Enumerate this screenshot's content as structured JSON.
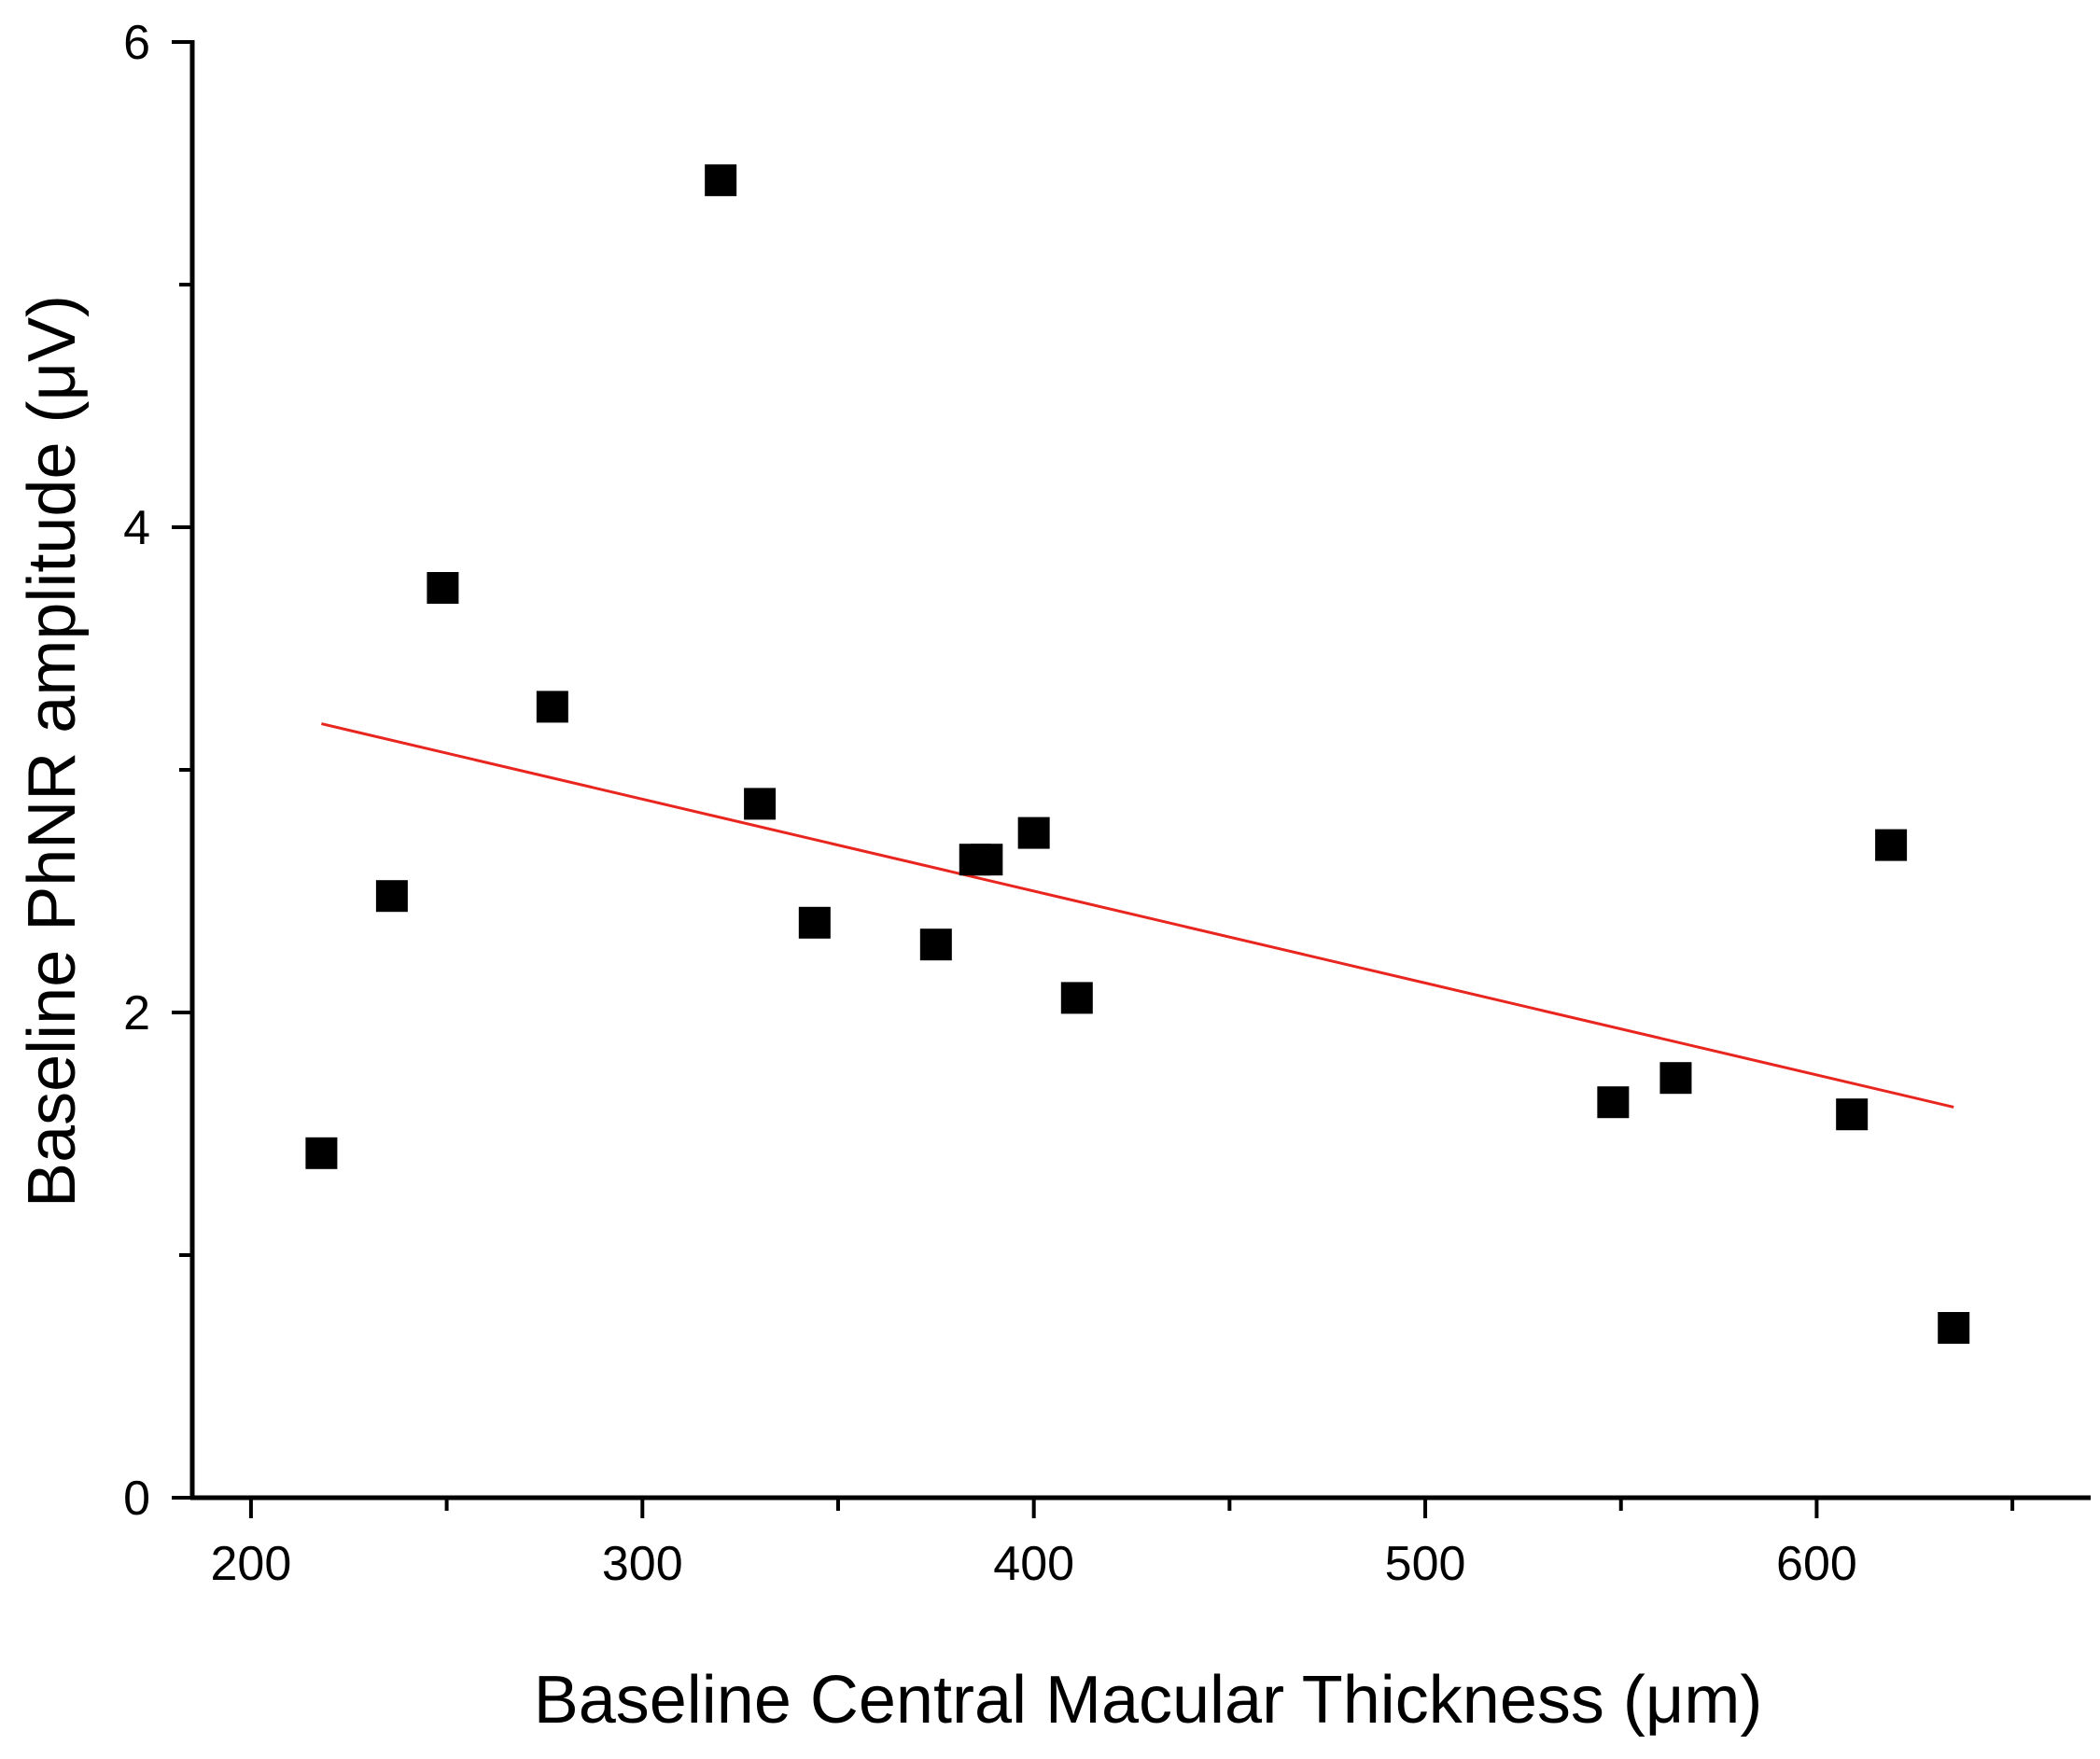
{
  "chart_data": {
    "type": "scatter",
    "title": "",
    "xlabel": "Baseline Central Macular Thickness (μm)",
    "ylabel": "Baseline PhNR amplitude (μV)",
    "xlim": [
      185,
      670
    ],
    "ylim": [
      0,
      6
    ],
    "x_ticks": [
      200,
      300,
      400,
      500,
      600
    ],
    "x_tick_labels": [
      "200",
      "300",
      "400",
      "500",
      "600"
    ],
    "x_minor_ticks": [
      250,
      350,
      450,
      550,
      650
    ],
    "y_ticks": [
      0,
      2,
      4,
      6
    ],
    "y_tick_labels": [
      "0",
      "2",
      "4",
      "6"
    ],
    "y_minor_ticks": [
      1,
      3,
      5
    ],
    "grid": false,
    "series": [
      {
        "marker": "square",
        "color": "#000000",
        "points": [
          {
            "x": 218,
            "y": 1.42
          },
          {
            "x": 236,
            "y": 2.48
          },
          {
            "x": 249,
            "y": 3.75
          },
          {
            "x": 277,
            "y": 3.26
          },
          {
            "x": 320,
            "y": 5.43
          },
          {
            "x": 330,
            "y": 2.86
          },
          {
            "x": 344,
            "y": 2.37
          },
          {
            "x": 375,
            "y": 2.28
          },
          {
            "x": 385,
            "y": 2.63
          },
          {
            "x": 388,
            "y": 2.63
          },
          {
            "x": 400,
            "y": 2.74
          },
          {
            "x": 411,
            "y": 2.06
          },
          {
            "x": 548,
            "y": 1.63
          },
          {
            "x": 564,
            "y": 1.73
          },
          {
            "x": 609,
            "y": 1.58
          },
          {
            "x": 619,
            "y": 2.69
          },
          {
            "x": 635,
            "y": 0.7
          }
        ]
      }
    ],
    "trendline": {
      "color": "#e8261f",
      "x": [
        218,
        635
      ],
      "y": [
        3.19,
        1.61
      ]
    }
  }
}
